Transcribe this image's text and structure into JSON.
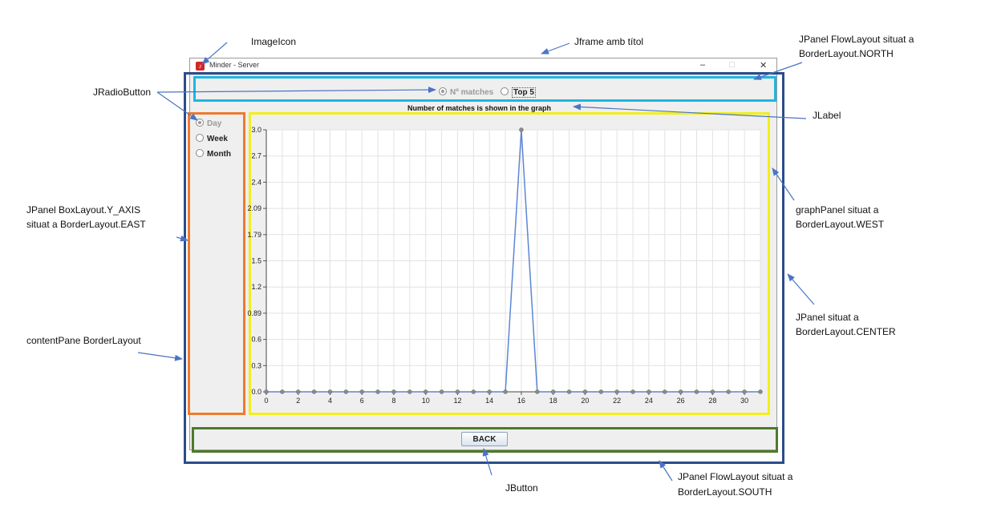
{
  "annotations": {
    "image_icon": "ImageIcon",
    "jframe": "Jframe amb títol",
    "north_line1": "JPanel FlowLayout situat a",
    "north_line2": "BorderLayout.NORTH",
    "jradiobutton": "JRadioButton",
    "jlabel": "JLabel",
    "east_line1": "JPanel BoxLayout.Y_AXIS",
    "east_line2": "situat a BorderLayout.EAST",
    "west_line1": "graphPanel situat a",
    "west_line2": "BorderLayout.WEST",
    "center_line1": "JPanel situat a",
    "center_line2": "BorderLayout.CENTER",
    "content_pane": "contentPane BorderLayout",
    "jbutton": "JButton",
    "south_line1": "JPanel FlowLayout situat a",
    "south_line2": "BorderLayout.SOUTH"
  },
  "window": {
    "title": "Minder - Server",
    "icon_glyph": "♪",
    "minimize": "–",
    "maximize": "□",
    "close": "✕"
  },
  "top_radios": [
    {
      "label": "Nº matches",
      "selected": true,
      "enabled": false
    },
    {
      "label": "Top 5",
      "selected": false,
      "enabled": true
    }
  ],
  "side_radios": [
    {
      "label": "Day",
      "selected": true,
      "enabled": false
    },
    {
      "label": "Week",
      "selected": false,
      "enabled": true
    },
    {
      "label": "Month",
      "selected": false,
      "enabled": true
    }
  ],
  "back_button": "BACK",
  "colors": {
    "window_border": "#2b4c8c",
    "north": "#1fb6e0",
    "east": "#ee7a2e",
    "graph": "#f2ef1a",
    "south": "#4e7a2a",
    "arrow": "#4a74c4",
    "line": "#5b86d6"
  },
  "chart_data": {
    "type": "line",
    "title": "Number of matches is shown in the graph",
    "xlabel": "",
    "ylabel": "",
    "x_ticks": [
      "0",
      "2",
      "4",
      "6",
      "8",
      "10",
      "12",
      "14",
      "16",
      "18",
      "20",
      "22",
      "24",
      "26",
      "28",
      "30"
    ],
    "y_ticks": [
      "0.0",
      "0.3",
      "0.6",
      "0.89",
      "1.2",
      "1.5",
      "1.79",
      "2.09",
      "2.4",
      "2.7",
      "3.0"
    ],
    "xlim": [
      0,
      31
    ],
    "ylim": [
      0,
      3.0
    ],
    "grid": true,
    "x": [
      0,
      1,
      2,
      3,
      4,
      5,
      6,
      7,
      8,
      9,
      10,
      11,
      12,
      13,
      14,
      15,
      16,
      17,
      18,
      19,
      20,
      21,
      22,
      23,
      24,
      25,
      26,
      27,
      28,
      29,
      30,
      31
    ],
    "values": [
      0,
      0,
      0,
      0,
      0,
      0,
      0,
      0,
      0,
      0,
      0,
      0,
      0,
      0,
      0,
      0,
      3.0,
      0,
      0,
      0,
      0,
      0,
      0,
      0,
      0,
      0,
      0,
      0,
      0,
      0,
      0,
      0
    ]
  }
}
